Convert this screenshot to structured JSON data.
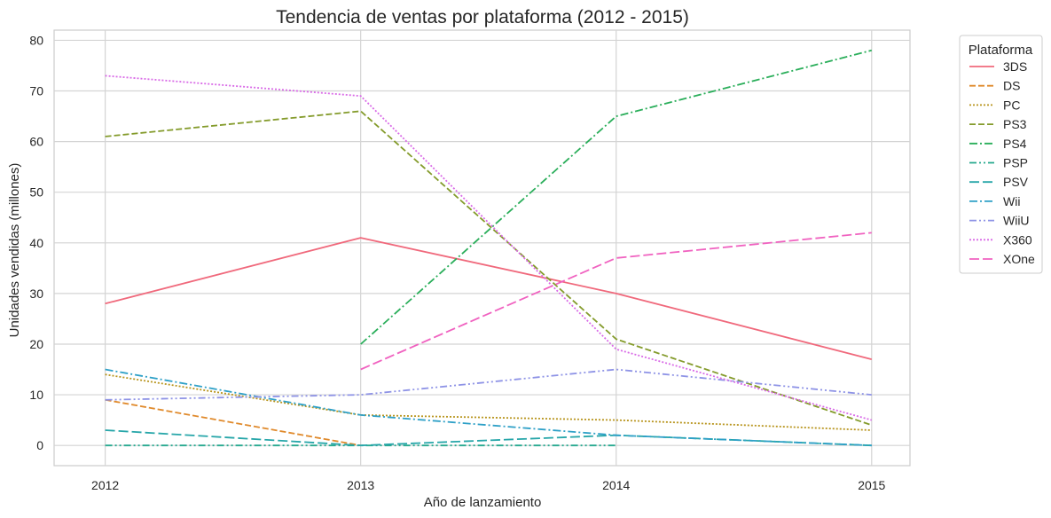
{
  "chart_data": {
    "type": "line",
    "title": "Tendencia de ventas por plataforma (2012 - 2015)",
    "xlabel": "Año de lanzamiento",
    "ylabel": "Unidades vendidas (millones)",
    "x": [
      2012,
      2013,
      2014,
      2015
    ],
    "x_tick_labels": [
      "2012",
      "2013",
      "2014",
      "2015"
    ],
    "y_ticks": [
      0,
      10,
      20,
      30,
      40,
      50,
      60,
      70,
      80
    ],
    "ylim": [
      -4,
      82
    ],
    "grid": true,
    "legend": {
      "title": "Plataforma",
      "placement": "outside-right"
    },
    "series": [
      {
        "name": "3DS",
        "color": "#f0697c",
        "dash": "solid",
        "values": [
          28,
          41,
          30,
          17
        ]
      },
      {
        "name": "DS",
        "color": "#e08a2c",
        "dash": "dashed",
        "values": [
          9,
          0,
          null,
          null
        ]
      },
      {
        "name": "PC",
        "color": "#b8951e",
        "dash": "dotted",
        "values": [
          14,
          6,
          5,
          3
        ]
      },
      {
        "name": "PS3",
        "color": "#849b2b",
        "dash": "dashed",
        "values": [
          61,
          66,
          21,
          4
        ]
      },
      {
        "name": "PS4",
        "color": "#2aae5a",
        "dash": "dashdot",
        "values": [
          null,
          20,
          65,
          78
        ]
      },
      {
        "name": "PSP",
        "color": "#27a98f",
        "dash": "dashdotdot",
        "values": [
          0,
          0,
          0,
          null
        ]
      },
      {
        "name": "PSV",
        "color": "#27a6a9",
        "dash": "longdash",
        "values": [
          3,
          0,
          2,
          0
        ]
      },
      {
        "name": "Wii",
        "color": "#2ea0c7",
        "dash": "dashdot",
        "values": [
          15,
          6,
          2,
          0
        ]
      },
      {
        "name": "WiiU",
        "color": "#8e93e6",
        "dash": "dashdotdot",
        "values": [
          9,
          10,
          15,
          10
        ]
      },
      {
        "name": "X360",
        "color": "#d96be7",
        "dash": "dotted",
        "values": [
          73,
          69,
          19,
          5
        ]
      },
      {
        "name": "XOne",
        "color": "#f062c0",
        "dash": "longdash",
        "values": [
          null,
          15,
          37,
          42
        ]
      }
    ]
  }
}
